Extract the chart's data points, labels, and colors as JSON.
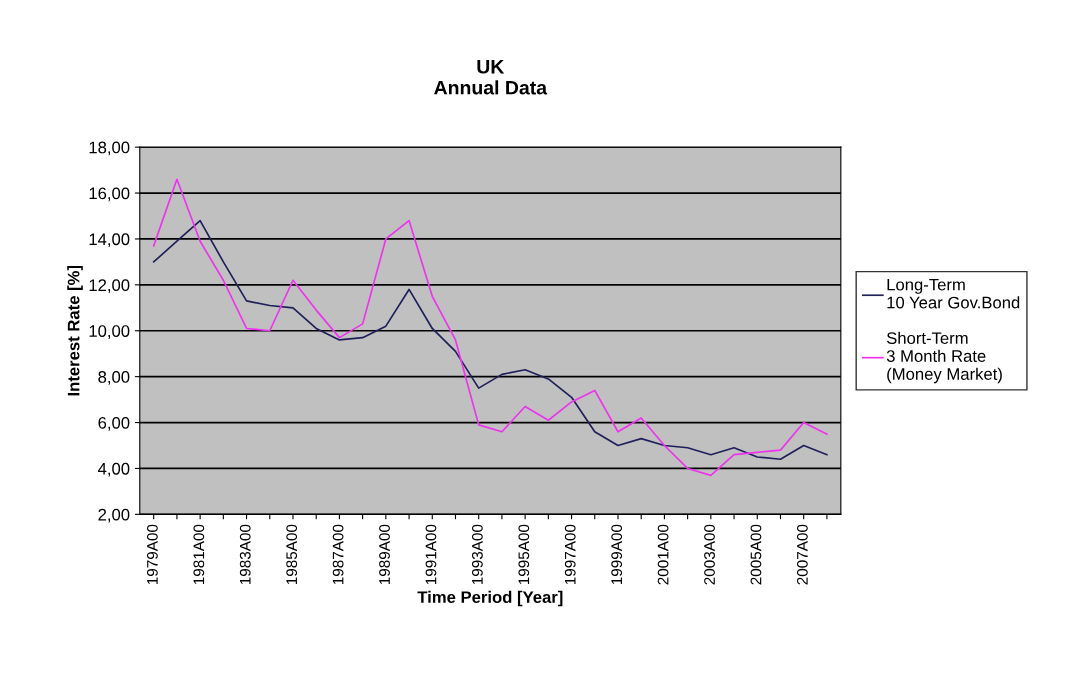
{
  "chart_data": {
    "type": "line",
    "title": "UK\nAnnual Data",
    "xlabel": "Time Period [Year]",
    "ylabel": "Interest Rate [%]",
    "categories": [
      "1979A00",
      null,
      "1981A00",
      null,
      "1983A00",
      null,
      "1985A00",
      null,
      "1987A00",
      null,
      "1989A00",
      null,
      "1991A00",
      null,
      "1993A00",
      null,
      "1995A00",
      null,
      "1997A00",
      null,
      "1999A00",
      null,
      "2001A00",
      null,
      "2003A00",
      null,
      "2005A00",
      null,
      "2007A00",
      null
    ],
    "series": [
      {
        "name": "Long-Term\n10 Year Gov.Bond",
        "color": "#1f1f5c",
        "values": [
          13.0,
          13.9,
          14.8,
          13.0,
          11.3,
          11.1,
          11.0,
          10.1,
          9.6,
          9.7,
          10.2,
          11.8,
          10.1,
          9.1,
          7.5,
          8.1,
          8.3,
          7.9,
          7.1,
          5.6,
          5.0,
          5.3,
          5.0,
          4.9,
          4.6,
          4.9,
          4.5,
          4.4,
          5.0,
          4.6
        ]
      },
      {
        "name": "Short-Term\n3 Month Rate\n(Money Market)",
        "color": "#ee33ee",
        "values": [
          13.7,
          16.6,
          13.9,
          12.2,
          10.1,
          10.0,
          12.2,
          10.9,
          9.7,
          10.3,
          14.0,
          14.8,
          11.5,
          9.6,
          5.9,
          5.6,
          6.7,
          6.1,
          6.9,
          7.4,
          5.6,
          6.2,
          5.0,
          4.0,
          3.7,
          4.6,
          4.7,
          4.8,
          6.0,
          5.5
        ]
      }
    ],
    "ylim": [
      2,
      18
    ],
    "yticks": [
      {
        "value": 2,
        "label": "2,00"
      },
      {
        "value": 4,
        "label": "4,00"
      },
      {
        "value": 6,
        "label": "6,00"
      },
      {
        "value": 8,
        "label": "8,00"
      },
      {
        "value": 10,
        "label": "10,00"
      },
      {
        "value": 12,
        "label": "12,00"
      },
      {
        "value": 14,
        "label": "14,00"
      },
      {
        "value": 16,
        "label": "16,00"
      },
      {
        "value": 18,
        "label": "18,00"
      }
    ],
    "grid": "y",
    "legend": "right",
    "marker": "none",
    "line_style": "solid"
  }
}
